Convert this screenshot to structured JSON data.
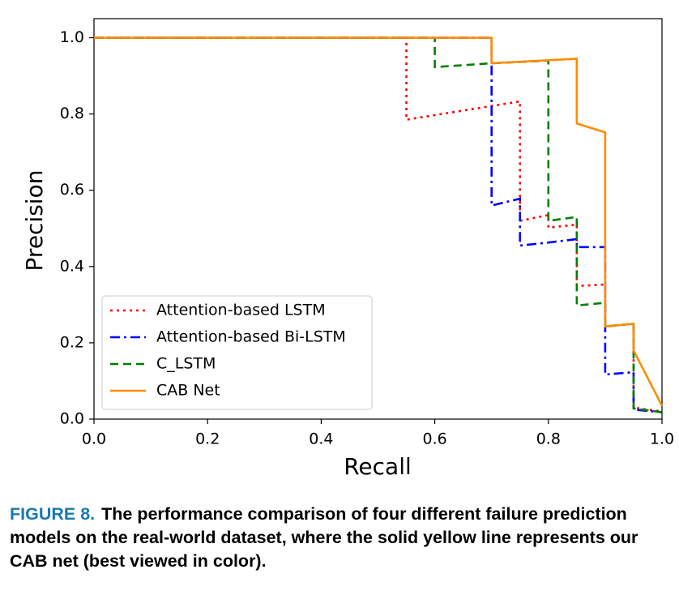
{
  "chart_data": {
    "type": "line",
    "x_label": "Recall",
    "y_label": "Precision",
    "xlim": [
      0,
      1
    ],
    "ylim": [
      0,
      1.05
    ],
    "xticks": [
      {
        "value": 0,
        "label": "0.0"
      },
      0.2,
      0.4,
      0.6,
      0.8,
      {
        "value": 1,
        "label": "1.0"
      }
    ],
    "yticks": [
      {
        "value": 0,
        "label": "0.0"
      },
      0.2,
      0.4,
      0.6,
      0.8,
      {
        "value": 1,
        "label": "1.0"
      }
    ],
    "legend": "lower left",
    "series": [
      {
        "name": "Attention-based LSTM",
        "color": "#ff0000",
        "linestyle": "dotted",
        "x": [
          0,
          0.55,
          0.55,
          0.75,
          0.75,
          0.8,
          0.8,
          0.85,
          0.85,
          0.9,
          0.9,
          0.95,
          0.95,
          1
        ],
        "values": [
          1,
          1,
          0.785,
          0.833,
          0.52,
          0.535,
          0.502,
          0.51,
          0.349,
          0.353,
          0.243,
          0.25,
          0.03,
          0.02
        ]
      },
      {
        "name": "Attention-based Bi-LSTM",
        "color": "#0000ff",
        "linestyle": "dashdot",
        "x": [
          0,
          0.7,
          0.7,
          0.75,
          0.75,
          0.8,
          0.85,
          0.85,
          0.9,
          0.9,
          0.95,
          0.95,
          1
        ],
        "values": [
          1,
          1,
          0.56,
          0.578,
          0.455,
          0.463,
          0.472,
          0.451,
          0.451,
          0.117,
          0.123,
          0.025,
          0.018
        ]
      },
      {
        "name": "C_LSTM",
        "color": "#008000",
        "linestyle": "dashed",
        "x": [
          0,
          0.6,
          0.6,
          0.7,
          0.8,
          0.8,
          0.85,
          0.85,
          0.9,
          0.9,
          0.95,
          0.95,
          1
        ],
        "values": [
          1,
          1,
          0.923,
          0.933,
          0.94,
          0.52,
          0.53,
          0.298,
          0.305,
          0.243,
          0.25,
          0.028,
          0.018
        ]
      },
      {
        "name": "CAB Net",
        "color": "#ff8c00",
        "linestyle": "solid",
        "x": [
          0,
          0.7,
          0.7,
          0.85,
          0.85,
          0.9,
          0.9,
          0.95,
          0.95,
          1
        ],
        "values": [
          1,
          1,
          0.933,
          0.945,
          0.775,
          0.752,
          0.243,
          0.25,
          0.18,
          0.035
        ]
      }
    ]
  },
  "caption": {
    "label": "FIGURE 8.",
    "text": "The performance comparison of four different failure prediction models on the real-world dataset, where the solid yellow line represents our CAB net (best viewed in color)."
  }
}
